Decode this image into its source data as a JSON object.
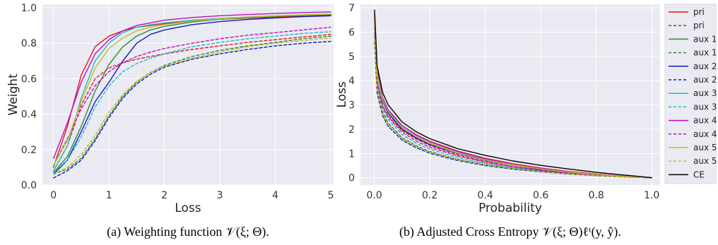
{
  "chart_data": [
    {
      "type": "line",
      "xlabel": "Loss",
      "ylabel": "Weight",
      "xlim": [
        -0.2,
        5.05
      ],
      "ylim": [
        0.0,
        1.02
      ],
      "xticks": [
        0,
        1,
        2,
        3,
        4,
        5
      ],
      "yticks": [
        0.0,
        0.2,
        0.4,
        0.6,
        0.8,
        1.0
      ],
      "x": [
        0,
        0.25,
        0.5,
        0.75,
        1.0,
        1.25,
        1.5,
        1.75,
        2.0,
        2.5,
        3.0,
        3.5,
        4.0,
        4.5,
        5.0
      ],
      "grid": true,
      "caption": "(a) Weighting function 𝒱(ξ; Θ).",
      "series": [
        {
          "name": "pri",
          "color": "#e8141c",
          "dash": "solid",
          "values": [
            0.1,
            0.33,
            0.62,
            0.78,
            0.84,
            0.87,
            0.89,
            0.9,
            0.91,
            0.925,
            0.935,
            0.942,
            0.948,
            0.952,
            0.955
          ]
        },
        {
          "name": "pri",
          "color": "#e8141c",
          "dash": "dashed",
          "values": [
            0.08,
            0.22,
            0.45,
            0.6,
            0.66,
            0.69,
            0.71,
            0.725,
            0.74,
            0.765,
            0.785,
            0.805,
            0.82,
            0.835,
            0.85
          ]
        },
        {
          "name": "aux 1",
          "color": "#2e8b2e",
          "dash": "solid",
          "values": [
            0.07,
            0.16,
            0.33,
            0.53,
            0.68,
            0.78,
            0.84,
            0.875,
            0.895,
            0.92,
            0.935,
            0.945,
            0.952,
            0.957,
            0.96
          ]
        },
        {
          "name": "aux 1",
          "color": "#2e8b2e",
          "dash": "dashed",
          "values": [
            0.06,
            0.09,
            0.15,
            0.26,
            0.39,
            0.5,
            0.58,
            0.635,
            0.675,
            0.725,
            0.76,
            0.785,
            0.805,
            0.825,
            0.84
          ]
        },
        {
          "name": "aux 2",
          "color": "#1515c8",
          "dash": "solid",
          "values": [
            0.06,
            0.14,
            0.3,
            0.47,
            0.58,
            0.7,
            0.8,
            0.85,
            0.875,
            0.905,
            0.922,
            0.934,
            0.943,
            0.95,
            0.955
          ]
        },
        {
          "name": "aux 2",
          "color": "#1515c8",
          "dash": "dashed",
          "values": [
            0.04,
            0.08,
            0.14,
            0.25,
            0.38,
            0.49,
            0.57,
            0.625,
            0.665,
            0.71,
            0.74,
            0.765,
            0.785,
            0.8,
            0.81
          ]
        },
        {
          "name": "aux 3",
          "color": "#20bcc0",
          "dash": "solid",
          "values": [
            0.08,
            0.22,
            0.49,
            0.7,
            0.8,
            0.86,
            0.89,
            0.905,
            0.915,
            0.93,
            0.94,
            0.948,
            0.955,
            0.96,
            0.965
          ]
        },
        {
          "name": "aux 3",
          "color": "#20bcc0",
          "dash": "dashed",
          "values": [
            0.07,
            0.14,
            0.27,
            0.44,
            0.56,
            0.64,
            0.685,
            0.715,
            0.74,
            0.78,
            0.805,
            0.825,
            0.84,
            0.855,
            0.865
          ]
        },
        {
          "name": "aux 4",
          "color": "#bd10bd",
          "dash": "solid",
          "values": [
            0.15,
            0.35,
            0.58,
            0.74,
            0.82,
            0.87,
            0.9,
            0.915,
            0.93,
            0.945,
            0.955,
            0.962,
            0.968,
            0.973,
            0.977
          ]
        },
        {
          "name": "aux 4",
          "color": "#bd10bd",
          "dash": "dashed",
          "values": [
            0.11,
            0.26,
            0.43,
            0.56,
            0.64,
            0.69,
            0.725,
            0.75,
            0.77,
            0.8,
            0.825,
            0.845,
            0.86,
            0.875,
            0.89
          ]
        },
        {
          "name": "aux 5",
          "color": "#c0bf20",
          "dash": "solid",
          "values": [
            0.11,
            0.25,
            0.47,
            0.66,
            0.77,
            0.83,
            0.87,
            0.89,
            0.905,
            0.925,
            0.937,
            0.947,
            0.954,
            0.96,
            0.965
          ]
        },
        {
          "name": "aux 5",
          "color": "#c0bf20",
          "dash": "dashed",
          "values": [
            0.06,
            0.1,
            0.17,
            0.28,
            0.41,
            0.51,
            0.585,
            0.635,
            0.67,
            0.715,
            0.75,
            0.78,
            0.8,
            0.815,
            0.83
          ]
        }
      ]
    },
    {
      "type": "line",
      "xlabel": "Probability",
      "ylabel": "Loss",
      "xlim": [
        -0.05,
        1.03
      ],
      "ylim": [
        -0.3,
        7.15
      ],
      "xticks": [
        0.0,
        0.2,
        0.4,
        0.6,
        0.8,
        1.0
      ],
      "yticks": [
        0,
        1,
        2,
        3,
        4,
        5,
        6,
        7
      ],
      "x": [
        0.001,
        0.01,
        0.03,
        0.05,
        0.1,
        0.15,
        0.2,
        0.3,
        0.4,
        0.5,
        0.6,
        0.7,
        0.8,
        0.9,
        1.0
      ],
      "grid": true,
      "legend_position": "outside-right",
      "caption": "(b) Adjusted Cross Entropy 𝒱(ξ; Θ)ℓᵗ(y, ŷ).",
      "series": [
        {
          "name": "pri",
          "color": "#e8141c",
          "dash": "solid",
          "values": [
            6.4,
            4.3,
            3.2,
            2.75,
            2.15,
            1.78,
            1.5,
            1.1,
            0.8,
            0.58,
            0.4,
            0.26,
            0.15,
            0.06,
            0.0
          ]
        },
        {
          "name": "pri",
          "color": "#e8141c",
          "dash": "dashed",
          "values": [
            5.9,
            3.9,
            2.95,
            2.55,
            1.95,
            1.6,
            1.33,
            0.94,
            0.66,
            0.46,
            0.31,
            0.19,
            0.1,
            0.04,
            0.0
          ]
        },
        {
          "name": "aux 1",
          "color": "#2e8b2e",
          "dash": "solid",
          "values": [
            6.6,
            4.35,
            3.2,
            2.7,
            2.05,
            1.68,
            1.4,
            1.02,
            0.74,
            0.53,
            0.36,
            0.23,
            0.13,
            0.05,
            0.0
          ]
        },
        {
          "name": "aux 1",
          "color": "#2e8b2e",
          "dash": "dashed",
          "values": [
            5.8,
            3.7,
            2.7,
            2.25,
            1.65,
            1.32,
            1.08,
            0.76,
            0.54,
            0.38,
            0.26,
            0.16,
            0.09,
            0.03,
            0.0
          ]
        },
        {
          "name": "aux 2",
          "color": "#1515c8",
          "dash": "solid",
          "values": [
            6.5,
            4.3,
            3.15,
            2.65,
            2.0,
            1.64,
            1.37,
            1.0,
            0.72,
            0.52,
            0.35,
            0.22,
            0.12,
            0.05,
            0.0
          ]
        },
        {
          "name": "aux 2",
          "color": "#1515c8",
          "dash": "dashed",
          "values": [
            5.6,
            3.5,
            2.55,
            2.12,
            1.55,
            1.24,
            1.01,
            0.71,
            0.5,
            0.35,
            0.24,
            0.15,
            0.08,
            0.03,
            0.0
          ]
        },
        {
          "name": "aux 3",
          "color": "#20bcc0",
          "dash": "solid",
          "values": [
            6.6,
            4.35,
            3.25,
            2.75,
            2.08,
            1.7,
            1.42,
            1.03,
            0.75,
            0.54,
            0.37,
            0.23,
            0.13,
            0.05,
            0.0
          ]
        },
        {
          "name": "aux 3",
          "color": "#20bcc0",
          "dash": "dashed",
          "values": [
            6.0,
            3.85,
            2.85,
            2.4,
            1.78,
            1.43,
            1.18,
            0.83,
            0.59,
            0.41,
            0.28,
            0.17,
            0.09,
            0.04,
            0.0
          ]
        },
        {
          "name": "aux 4",
          "color": "#bd10bd",
          "dash": "solid",
          "values": [
            6.75,
            4.45,
            3.3,
            2.8,
            2.15,
            1.76,
            1.48,
            1.08,
            0.78,
            0.56,
            0.39,
            0.25,
            0.14,
            0.06,
            0.0
          ]
        },
        {
          "name": "aux 4",
          "color": "#bd10bd",
          "dash": "dashed",
          "values": [
            6.2,
            4.0,
            2.95,
            2.5,
            1.88,
            1.52,
            1.26,
            0.9,
            0.64,
            0.45,
            0.3,
            0.19,
            0.1,
            0.04,
            0.0
          ]
        },
        {
          "name": "aux 5",
          "color": "#c0bf20",
          "dash": "solid",
          "values": [
            6.55,
            4.3,
            3.2,
            2.72,
            2.06,
            1.69,
            1.41,
            1.02,
            0.74,
            0.53,
            0.36,
            0.23,
            0.13,
            0.05,
            0.0
          ]
        },
        {
          "name": "aux 5",
          "color": "#c0bf20",
          "dash": "dashed",
          "values": [
            5.7,
            3.6,
            2.62,
            2.18,
            1.6,
            1.28,
            1.05,
            0.74,
            0.52,
            0.36,
            0.25,
            0.15,
            0.08,
            0.03,
            0.0
          ]
        },
        {
          "name": "CE",
          "color": "#000000",
          "dash": "solid",
          "values": [
            6.91,
            4.61,
            3.51,
            3.0,
            2.3,
            1.9,
            1.61,
            1.2,
            0.92,
            0.69,
            0.51,
            0.36,
            0.22,
            0.11,
            0.0
          ]
        }
      ]
    }
  ]
}
